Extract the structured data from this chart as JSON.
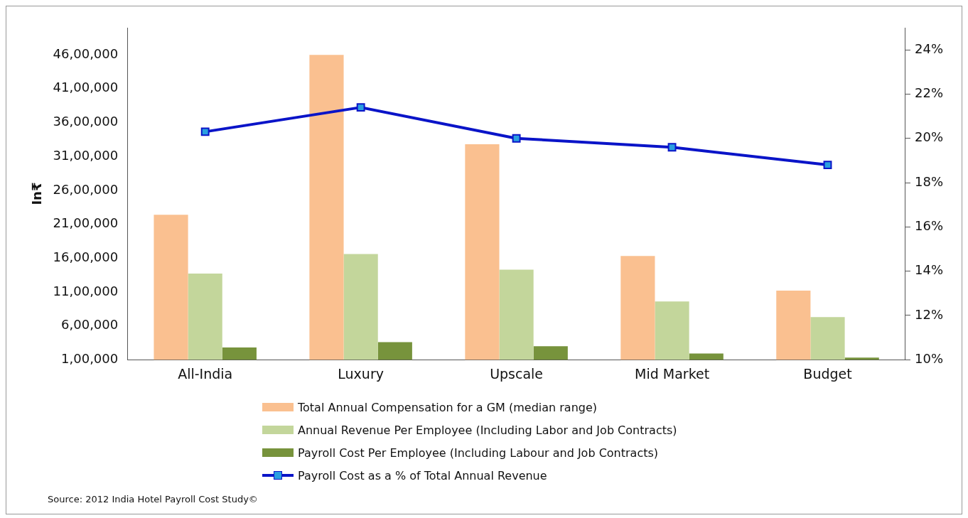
{
  "chart_data": {
    "type": "bar",
    "ylabel": "In₹",
    "categories": [
      "All-India",
      "Luxury",
      "Upscale",
      "Mid Market",
      "Budget"
    ],
    "series": [
      {
        "name": "Total Annual Compensation for a GM (median range)",
        "color": "#fac090",
        "values": [
          2240000,
          4600000,
          3280000,
          1630000,
          1120000
        ]
      },
      {
        "name": "Annual Revenue Per Employee (Including Labor and Job Contracts)",
        "color": "#c3d69b",
        "values": [
          1370000,
          1660000,
          1430000,
          960000,
          730000
        ]
      },
      {
        "name": "Payroll Cost Per Employee (Including Labour and Job Contracts)",
        "color": "#77933c",
        "values": [
          280000,
          360000,
          300000,
          190000,
          130000
        ]
      },
      {
        "name": "Payroll Cost as a % of Total  Annual Revenue",
        "type": "line",
        "axis": "y2",
        "color": "#0a14c8",
        "values": [
          20.3,
          21.4,
          20.0,
          19.6,
          18.8
        ]
      }
    ],
    "ylim": [
      100000,
      5000000
    ],
    "yticks": [
      {
        "value": 100000,
        "label": "1,00,000"
      },
      {
        "value": 600000,
        "label": "6,00,000"
      },
      {
        "value": 1100000,
        "label": "11,00,000"
      },
      {
        "value": 1600000,
        "label": "16,00,000"
      },
      {
        "value": 2100000,
        "label": "21,00,000"
      },
      {
        "value": 2600000,
        "label": "26,00,000"
      },
      {
        "value": 3100000,
        "label": "31,00,000"
      },
      {
        "value": 3600000,
        "label": "36,00,000"
      },
      {
        "value": 4100000,
        "label": "41,00,000"
      },
      {
        "value": 4600000,
        "label": "46,00,000"
      }
    ],
    "y2lim": [
      10,
      25
    ],
    "y2ticks": [
      {
        "value": 10,
        "label": "10%"
      },
      {
        "value": 12,
        "label": "12%"
      },
      {
        "value": 14,
        "label": "14%"
      },
      {
        "value": 16,
        "label": "16%"
      },
      {
        "value": 18,
        "label": "18%"
      },
      {
        "value": 20,
        "label": "20%"
      },
      {
        "value": 22,
        "label": "22%"
      },
      {
        "value": 24,
        "label": "24%"
      }
    ],
    "marker": "square",
    "grid": false,
    "legend": "bottom",
    "annotations": [
      "Source: 2012  India Hotel Payroll Cost Study©"
    ]
  }
}
